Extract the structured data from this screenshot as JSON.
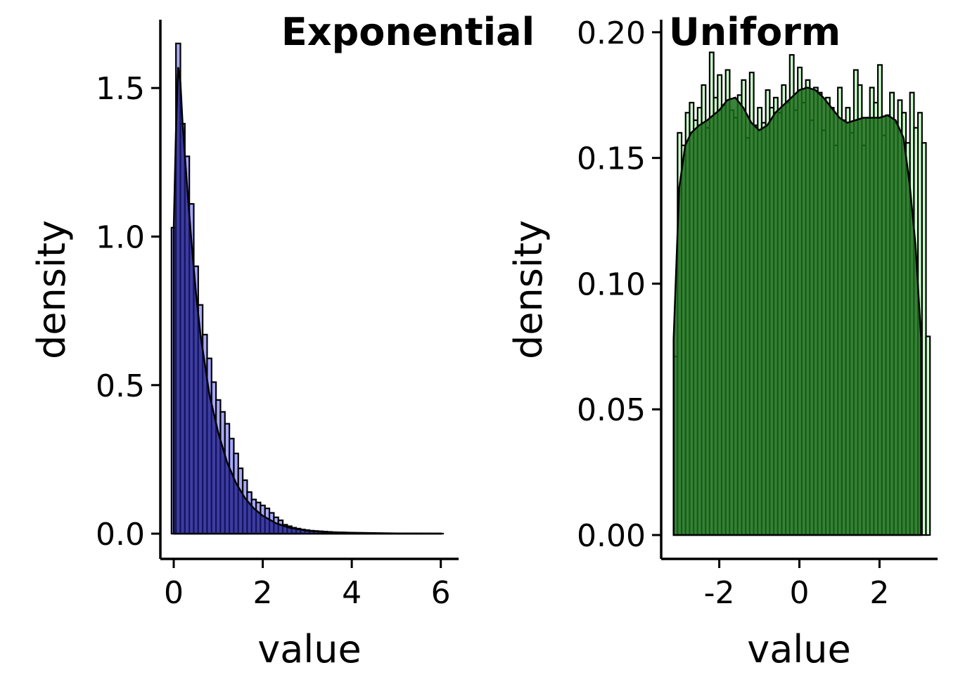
{
  "chart_data": [
    {
      "type": "bar",
      "title": "Exponential",
      "xlabel": "value",
      "ylabel": "density",
      "xlim": [
        -0.3,
        6.4
      ],
      "ylim": [
        -0.085,
        1.73
      ],
      "xticks": [
        0,
        2,
        4,
        6
      ],
      "xtick_labels": [
        "0",
        "2",
        "4",
        "6"
      ],
      "yticks": [
        0.0,
        0.5,
        1.0,
        1.5
      ],
      "ytick_labels": [
        "0.0",
        "0.5",
        "1.0",
        "1.5"
      ],
      "grid": false,
      "legend": "none",
      "bar_fill": "#a8a8ff",
      "density_fill": "#1a1a80",
      "bin_width": 0.1,
      "bin_start": -0.05,
      "values": [
        1.03,
        1.65,
        1.38,
        1.27,
        1.11,
        0.9,
        0.77,
        0.67,
        0.59,
        0.51,
        0.45,
        0.41,
        0.37,
        0.32,
        0.27,
        0.22,
        0.18,
        0.14,
        0.115,
        0.105,
        0.095,
        0.085,
        0.07,
        0.055,
        0.045,
        0.03,
        0.025,
        0.02,
        0.017,
        0.014,
        0.012,
        0.01,
        0.009,
        0.008,
        0.007,
        0.006,
        0.005,
        0.004,
        0.004,
        0.003,
        0.003,
        0.002,
        0.002,
        0.002,
        0.0015,
        0.0015,
        0.001,
        0.001,
        0.001,
        0.001,
        0.0008,
        0.0008,
        0.0006,
        0.0005,
        0.0005,
        0.0004,
        0.0004,
        0.0003,
        0.0003,
        0.0002,
        0.0002
      ],
      "density_x": [
        0,
        0.05,
        0.1,
        0.15,
        0.2,
        0.3,
        0.4,
        0.5,
        0.6,
        0.8,
        1.0,
        1.2,
        1.4,
        1.6,
        1.8,
        2.0,
        2.3,
        2.6,
        3.0,
        3.5,
        4.0,
        5.0,
        6.0
      ],
      "density_y": [
        1.03,
        1.35,
        1.57,
        1.52,
        1.38,
        1.17,
        0.98,
        0.81,
        0.67,
        0.47,
        0.34,
        0.24,
        0.17,
        0.12,
        0.085,
        0.06,
        0.035,
        0.02,
        0.01,
        0.005,
        0.003,
        0.001,
        0.0005
      ]
    },
    {
      "type": "bar",
      "title": "Uniform",
      "xlabel": "value",
      "ylabel": "density",
      "xlim": [
        -3.45,
        3.45
      ],
      "ylim": [
        -0.0095,
        0.205
      ],
      "xticks": [
        -2,
        0,
        2
      ],
      "xtick_labels": [
        "-2",
        "0",
        "2"
      ],
      "yticks": [
        0.0,
        0.05,
        0.1,
        0.15,
        0.2
      ],
      "ytick_labels": [
        "0.00",
        "0.05",
        "0.10",
        "0.15",
        "0.20"
      ],
      "grid": false,
      "legend": "none",
      "bar_fill": "#ccffcc",
      "density_fill": "#1a6b1a",
      "bin_width": 0.1,
      "bin_start": -3.14,
      "values": [
        0.071,
        0.16,
        0.155,
        0.168,
        0.172,
        0.165,
        0.17,
        0.179,
        0.162,
        0.192,
        0.174,
        0.183,
        0.171,
        0.185,
        0.169,
        0.166,
        0.175,
        0.181,
        0.158,
        0.184,
        0.163,
        0.17,
        0.164,
        0.177,
        0.17,
        0.174,
        0.168,
        0.179,
        0.172,
        0.191,
        0.169,
        0.186,
        0.172,
        0.181,
        0.165,
        0.178,
        0.176,
        0.161,
        0.174,
        0.17,
        0.155,
        0.178,
        0.165,
        0.17,
        0.16,
        0.185,
        0.179,
        0.155,
        0.166,
        0.178,
        0.172,
        0.187,
        0.159,
        0.167,
        0.176,
        0.164,
        0.173,
        0.168,
        0.156,
        0.176,
        0.162,
        0.168,
        0.156,
        0.079
      ],
      "density_x": [
        -3.14,
        -3.0,
        -2.85,
        -2.7,
        -2.5,
        -2.3,
        -2.0,
        -1.8,
        -1.6,
        -1.4,
        -1.2,
        -1.0,
        -0.8,
        -0.6,
        -0.4,
        -0.2,
        0.0,
        0.2,
        0.4,
        0.6,
        0.8,
        1.0,
        1.2,
        1.4,
        1.6,
        1.8,
        2.0,
        2.2,
        2.4,
        2.6,
        2.75,
        2.9,
        3.04
      ],
      "density_y": [
        0.078,
        0.138,
        0.155,
        0.16,
        0.163,
        0.165,
        0.169,
        0.173,
        0.174,
        0.17,
        0.164,
        0.161,
        0.163,
        0.168,
        0.171,
        0.174,
        0.177,
        0.178,
        0.177,
        0.174,
        0.17,
        0.166,
        0.164,
        0.165,
        0.166,
        0.166,
        0.166,
        0.167,
        0.165,
        0.158,
        0.14,
        0.115,
        0.078
      ]
    }
  ]
}
